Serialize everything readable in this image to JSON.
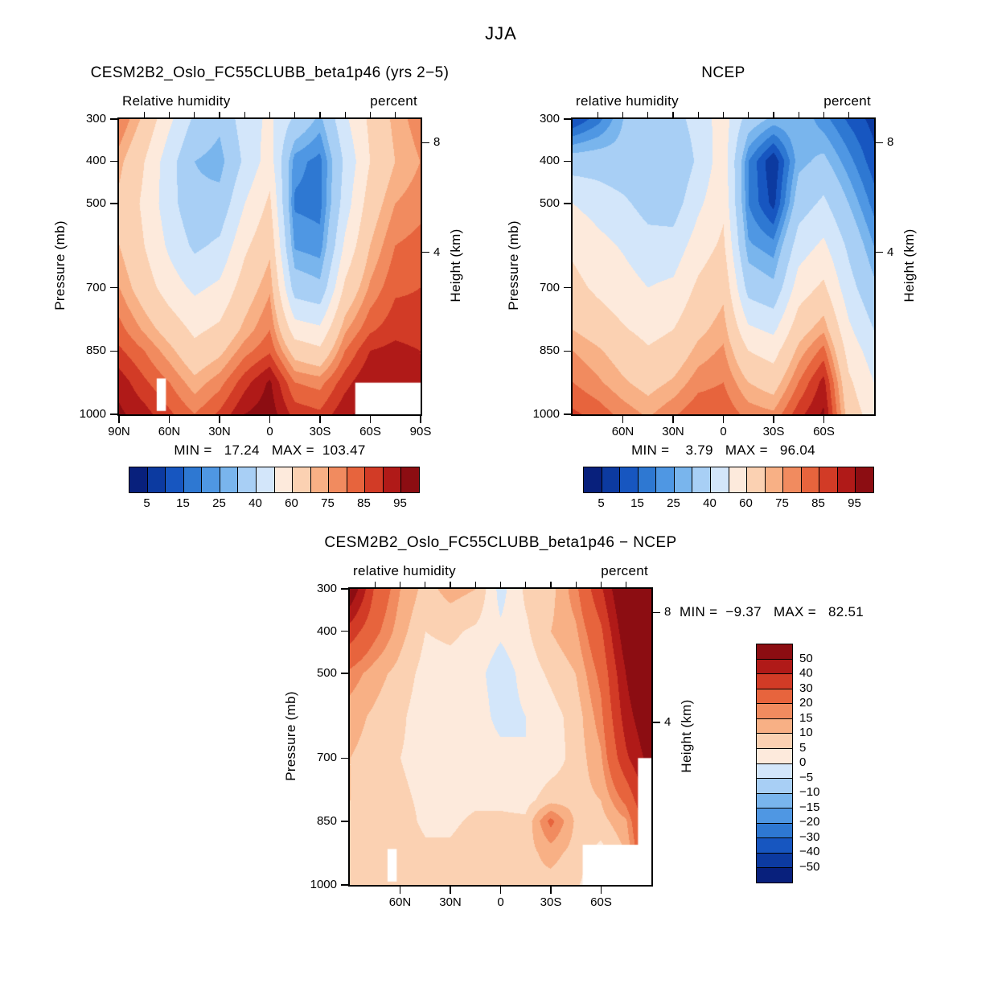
{
  "title": "JJA",
  "colorbar": {
    "levels": [
      5,
      10,
      15,
      20,
      25,
      30,
      40,
      50,
      60,
      70,
      75,
      80,
      85,
      90,
      95
    ],
    "labels": [
      "5",
      "15",
      "25",
      "40",
      "60",
      "75",
      "85",
      "95"
    ],
    "palette": [
      "#08207c",
      "#0c3aa0",
      "#1756c0",
      "#2e78d2",
      "#4f97e3",
      "#79b5ed",
      "#a8cff5",
      "#d3e6fa",
      "#fdeadc",
      "#fbd1b2",
      "#f8b085",
      "#f18b5f",
      "#e7643d",
      "#d23b26",
      "#b01a18",
      "#8c0d12"
    ]
  },
  "diff_colorbar": {
    "levels": [
      -50,
      -40,
      -30,
      -20,
      -15,
      -10,
      -5,
      0,
      5,
      10,
      15,
      20,
      30,
      40,
      50
    ],
    "labels": [
      "50",
      "40",
      "30",
      "20",
      "15",
      "10",
      "5",
      "0",
      "−5",
      "−10",
      "−15",
      "−20",
      "−30",
      "−40",
      "−50"
    ]
  },
  "chart_data": [
    {
      "id": "cesm",
      "type": "heatmap",
      "title": "CESM2B2_Oslo_FC55CLUBB_beta1p46 (yrs 2−5)",
      "top_left_label": "Relative humidity",
      "top_right_label": "percent",
      "ylabel": "Pressure (mb)",
      "ylabel_right": "Height (km)",
      "units": "percent",
      "minmax": "MIN =   17.24   MAX =  103.47",
      "min": 17.24,
      "max": 103.47,
      "pressure_ticks": [
        "300",
        "400",
        "500",
        "700",
        "850",
        "1000"
      ],
      "pressure_tick_values": [
        300,
        400,
        500,
        700,
        850,
        1000
      ],
      "height_ticks": [
        {
          "label": "8",
          "pressure": 356
        },
        {
          "label": "4",
          "pressure": 616
        }
      ],
      "lat_tick_labels": [
        "90N",
        "60N",
        "30N",
        "0",
        "30S",
        "60S",
        "90S"
      ],
      "lat_tick_degrees": [
        90,
        60,
        30,
        0,
        -30,
        -60,
        -90
      ],
      "lats": [
        90,
        75,
        60,
        45,
        30,
        15,
        0,
        -15,
        -30,
        -45,
        -60,
        -75,
        -90
      ],
      "pressures": [
        300,
        400,
        500,
        600,
        700,
        800,
        850,
        925,
        1000
      ],
      "values": [
        [
          80,
          68,
          52,
          38,
          32,
          45,
          52,
          38,
          28,
          48,
          62,
          72,
          78
        ],
        [
          72,
          60,
          44,
          30,
          27,
          42,
          55,
          22,
          18,
          42,
          60,
          70,
          75
        ],
        [
          68,
          58,
          44,
          32,
          33,
          50,
          62,
          19,
          18,
          45,
          65,
          75,
          78
        ],
        [
          70,
          60,
          48,
          38,
          42,
          58,
          68,
          24,
          22,
          52,
          70,
          80,
          82
        ],
        [
          75,
          65,
          55,
          48,
          52,
          65,
          74,
          35,
          32,
          62,
          76,
          84,
          85
        ],
        [
          82,
          74,
          66,
          58,
          62,
          72,
          80,
          55,
          52,
          74,
          84,
          88,
          87
        ],
        [
          86,
          80,
          72,
          63,
          68,
          78,
          84,
          66,
          62,
          80,
          90,
          92,
          90
        ],
        [
          93,
          86,
          80,
          72,
          78,
          88,
          96,
          80,
          78,
          88,
          95,
          92,
          90
        ],
        [
          96,
          92,
          86,
          80,
          86,
          95,
          98,
          88,
          86,
          94,
          97,
          92,
          90
        ]
      ],
      "masks": [
        {
          "lat0": 67.5,
          "lat1": 62,
          "p0": 915,
          "p1": 992
        },
        {
          "lat0": -51,
          "lat1": -90,
          "p0": 925,
          "p1": 1000
        }
      ]
    },
    {
      "id": "ncep",
      "type": "heatmap",
      "title": "NCEP",
      "top_left_label": "relative humidity",
      "top_right_label": "percent",
      "ylabel": "Pressure (mb)",
      "ylabel_right": "Height (km)",
      "units": "percent",
      "minmax": "MIN =    3.79   MAX =   96.04",
      "min": 3.79,
      "max": 96.04,
      "pressure_ticks": [
        "300",
        "400",
        "500",
        "700",
        "850",
        "1000"
      ],
      "pressure_tick_values": [
        300,
        400,
        500,
        700,
        850,
        1000
      ],
      "height_ticks": [
        {
          "label": "8",
          "pressure": 356
        },
        {
          "label": "4",
          "pressure": 616
        }
      ],
      "lat_tick_labels": [
        "60N",
        "30N",
        "0",
        "30S",
        "60S"
      ],
      "lat_tick_degrees": [
        60,
        30,
        0,
        -30,
        -60
      ],
      "lats": [
        90,
        75,
        60,
        45,
        30,
        15,
        0,
        -15,
        -30,
        -45,
        -60,
        -75,
        -90
      ],
      "pressures": [
        300,
        400,
        500,
        600,
        700,
        800,
        850,
        925,
        1000
      ],
      "values": [
        [
          10,
          18,
          30,
          38,
          36,
          44,
          55,
          35,
          28,
          30,
          22,
          14,
          8
        ],
        [
          35,
          35,
          33,
          30,
          30,
          42,
          56,
          20,
          5,
          28,
          32,
          22,
          12
        ],
        [
          50,
          46,
          42,
          36,
          35,
          48,
          58,
          20,
          8,
          35,
          42,
          30,
          18
        ],
        [
          58,
          53,
          49,
          44,
          44,
          55,
          62,
          26,
          22,
          45,
          52,
          38,
          25
        ],
        [
          63,
          58,
          54,
          50,
          52,
          62,
          68,
          36,
          32,
          55,
          62,
          44,
          32
        ],
        [
          70,
          66,
          61,
          57,
          60,
          68,
          73,
          52,
          48,
          66,
          74,
          52,
          40
        ],
        [
          75,
          71,
          66,
          61,
          64,
          72,
          76,
          60,
          56,
          72,
          82,
          56,
          45
        ],
        [
          80,
          76,
          71,
          67,
          71,
          78,
          80,
          70,
          66,
          80,
          92,
          62,
          50
        ],
        [
          86,
          83,
          78,
          74,
          79,
          84,
          84,
          78,
          76,
          88,
          96,
          66,
          55
        ]
      ],
      "masks": []
    },
    {
      "id": "diff",
      "type": "heatmap",
      "title": "CESM2B2_Oslo_FC55CLUBB_beta1p46 − NCEP",
      "top_left_label": "relative humidity",
      "top_right_label": "percent",
      "ylabel": "Pressure (mb)",
      "ylabel_right": "Height (km)",
      "units": "percent",
      "minmax": "MIN =  −9.37   MAX =   82.51",
      "min": -9.37,
      "max": 82.51,
      "pressure_ticks": [
        "300",
        "400",
        "500",
        "700",
        "850",
        "1000"
      ],
      "pressure_tick_values": [
        300,
        400,
        500,
        700,
        850,
        1000
      ],
      "height_ticks": [
        {
          "label": "8",
          "pressure": 356
        },
        {
          "label": "4",
          "pressure": 616
        }
      ],
      "lat_tick_labels": [
        "60N",
        "30N",
        "0",
        "30S",
        "60S"
      ],
      "lat_tick_degrees": [
        60,
        30,
        0,
        -30,
        -60
      ],
      "lats": [
        90,
        75,
        60,
        45,
        30,
        15,
        0,
        -15,
        -30,
        -45,
        -60,
        -75,
        -90
      ],
      "pressures": [
        300,
        400,
        500,
        600,
        700,
        800,
        850,
        925,
        1000
      ],
      "values": [
        [
          60,
          28,
          15,
          8,
          12,
          10,
          -2,
          6,
          8,
          18,
          38,
          65,
          80
        ],
        [
          35,
          22,
          12,
          5,
          6,
          4,
          1,
          4,
          10,
          14,
          28,
          58,
          78
        ],
        [
          18,
          12,
          8,
          3,
          3,
          2,
          -3,
          2,
          6,
          10,
          22,
          50,
          72
        ],
        [
          12,
          9,
          6,
          2,
          2,
          3,
          -2,
          0,
          3,
          7,
          18,
          45,
          62
        ],
        [
          10,
          8,
          5,
          3,
          2,
          3,
          2,
          0,
          2,
          7,
          14,
          38,
          55
        ],
        [
          10,
          8,
          6,
          4,
          3,
          4,
          4,
          3,
          8,
          8,
          10,
          22,
          45
        ],
        [
          9,
          9,
          7,
          4,
          4,
          6,
          6,
          6,
          22,
          9,
          8,
          14,
          40
        ],
        [
          9,
          9,
          8,
          6,
          6,
          8,
          8,
          8,
          12,
          8,
          3,
          10,
          35
        ],
        [
          8,
          8,
          8,
          6,
          6,
          9,
          10,
          9,
          8,
          6,
          0,
          8,
          30
        ]
      ],
      "masks": [
        {
          "lat0": 67.5,
          "lat1": 62,
          "p0": 915,
          "p1": 992
        },
        {
          "lat0": -49,
          "lat1": -90,
          "p0": 905,
          "p1": 1000
        },
        {
          "lat0": -82,
          "lat1": -90,
          "p0": 700,
          "p1": 1000
        }
      ]
    }
  ]
}
